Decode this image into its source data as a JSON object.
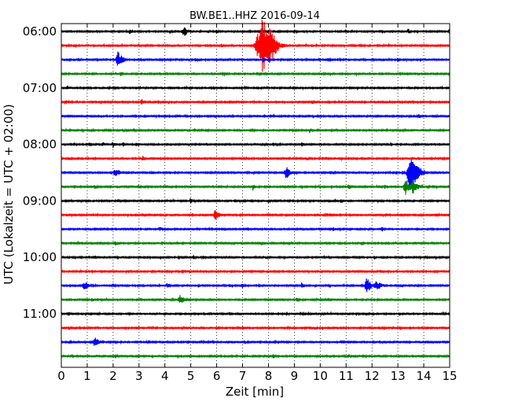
{
  "chart_data": {
    "type": "line",
    "title": "BW.BE1..HHZ 2016-09-14",
    "xlabel": "Zeit  [min]",
    "ylabel": "UTC (Lokalzeit = UTC + 02:00)",
    "xlim": [
      0,
      15
    ],
    "x_ticks": [
      "0",
      "1",
      "2",
      "3",
      "4",
      "5",
      "6",
      "7",
      "8",
      "9",
      "10",
      "11",
      "12",
      "13",
      "14",
      "15"
    ],
    "y_ticks": [
      "06:00",
      "07:00",
      "08:00",
      "09:00",
      "10:00",
      "11:00"
    ],
    "grid": {
      "vertical": "dotted",
      "horizontal": false
    },
    "trace_colors": [
      "#000000",
      "#ff0000",
      "#0000ff",
      "#008000"
    ],
    "traces": [
      {
        "start": "06:00",
        "events": [
          [
            2.65,
            1.0
          ],
          [
            4.75,
            1.4
          ],
          [
            4.2,
            0.5
          ],
          [
            6.0,
            0.4
          ],
          [
            9.0,
            0.5
          ],
          [
            12.4,
            0.4
          ],
          [
            13.4,
            0.8
          ],
          [
            15.0,
            0.8
          ]
        ]
      },
      {
        "start": "06:15",
        "events": [
          [
            3.0,
            0.5
          ],
          [
            6.2,
            0.6
          ],
          [
            7.6,
            3.5
          ],
          [
            7.8,
            7.0
          ],
          [
            8.1,
            3.0
          ],
          [
            11.5,
            0.4
          ]
        ]
      },
      {
        "start": "06:30",
        "events": [
          [
            0.7,
            0.4
          ],
          [
            2.2,
            2.5
          ],
          [
            3.0,
            0.5
          ],
          [
            5.2,
            0.4
          ],
          [
            7.8,
            0.6
          ],
          [
            10.3,
            0.4
          ],
          [
            13.0,
            0.5
          ]
        ]
      },
      {
        "start": "06:45",
        "events": [
          [
            1.2,
            0.5
          ],
          [
            2.3,
            0.4
          ],
          [
            6.3,
            0.5
          ],
          [
            11.0,
            0.4
          ]
        ]
      },
      {
        "start": "07:00",
        "events": [
          [
            0.25,
            0.7
          ],
          [
            2.0,
            0.4
          ],
          [
            5.8,
            0.4
          ],
          [
            9.0,
            0.4
          ]
        ]
      },
      {
        "start": "07:15",
        "events": [
          [
            0.2,
            0.4
          ],
          [
            1.5,
            0.4
          ],
          [
            3.1,
            1.0
          ],
          [
            9.7,
            0.5
          ],
          [
            13.4,
            0.4
          ]
        ]
      },
      {
        "start": "07:30",
        "events": [
          [
            4.5,
            0.4
          ],
          [
            8.1,
            0.4
          ],
          [
            13.8,
            0.8
          ]
        ]
      },
      {
        "start": "07:45",
        "events": [
          [
            2.8,
            0.4
          ],
          [
            5.6,
            0.5
          ],
          [
            9.6,
            0.4
          ]
        ]
      },
      {
        "start": "08:00",
        "events": [
          [
            0.5,
            0.5
          ],
          [
            1.1,
            0.6
          ],
          [
            1.6,
            0.7
          ],
          [
            2.0,
            0.9
          ],
          [
            2.4,
            0.7
          ],
          [
            2.9,
            0.5
          ],
          [
            7.8,
            0.4
          ],
          [
            8.2,
            0.4
          ],
          [
            9.3,
            0.5
          ]
        ]
      },
      {
        "start": "08:15",
        "events": [
          [
            0.3,
            0.4
          ],
          [
            3.15,
            0.9
          ],
          [
            9.5,
            0.4
          ]
        ]
      },
      {
        "start": "08:30",
        "events": [
          [
            2.1,
            1.3
          ],
          [
            3.5,
            0.5
          ],
          [
            8.7,
            1.8
          ],
          [
            10.5,
            0.4
          ],
          [
            13.2,
            0.5
          ],
          [
            13.5,
            6.0
          ]
        ]
      },
      {
        "start": "08:45",
        "events": [
          [
            1.3,
            0.5
          ],
          [
            3.0,
            0.5
          ],
          [
            4.0,
            0.4
          ],
          [
            7.4,
            1.0
          ],
          [
            11.1,
            1.2
          ],
          [
            12.5,
            0.5
          ],
          [
            13.3,
            2.5
          ],
          [
            13.6,
            2.0
          ]
        ]
      },
      {
        "start": "09:00",
        "events": [
          [
            2.2,
            0.4
          ],
          [
            5.0,
            1.0
          ],
          [
            8.0,
            0.4
          ],
          [
            10.8,
            0.4
          ]
        ]
      },
      {
        "start": "09:15",
        "events": [
          [
            5.95,
            1.4
          ],
          [
            10.2,
            0.4
          ]
        ]
      },
      {
        "start": "09:30",
        "events": [
          [
            1.3,
            0.5
          ],
          [
            3.8,
            1.0
          ],
          [
            10.5,
            0.6
          ],
          [
            12.4,
            0.6
          ]
        ]
      },
      {
        "start": "09:45",
        "events": [
          [
            2.1,
            0.5
          ],
          [
            3.9,
            0.5
          ],
          [
            7.7,
            0.4
          ],
          [
            8.8,
            0.4
          ],
          [
            11.6,
            0.4
          ]
        ]
      },
      {
        "start": "10:00",
        "events": [
          [
            1.3,
            0.4
          ],
          [
            2.1,
            0.4
          ],
          [
            5.1,
            0.6
          ],
          [
            5.5,
            0.4
          ],
          [
            7.9,
            0.4
          ],
          [
            12.1,
            0.4
          ]
        ]
      },
      {
        "start": "10:15",
        "events": [
          [
            3.5,
            0.5
          ],
          [
            4.7,
            0.4
          ]
        ]
      },
      {
        "start": "10:30",
        "events": [
          [
            0.9,
            1.3
          ],
          [
            2.0,
            0.5
          ],
          [
            4.1,
            0.9
          ],
          [
            7.0,
            0.6
          ],
          [
            9.3,
            1.0
          ],
          [
            11.8,
            2.5
          ],
          [
            12.2,
            1.5
          ]
        ]
      },
      {
        "start": "10:45",
        "events": [
          [
            1.2,
            0.4
          ],
          [
            4.6,
            1.4
          ],
          [
            9.1,
            0.5
          ]
        ]
      },
      {
        "start": "11:00",
        "events": [
          [
            0.3,
            0.4
          ],
          [
            6.5,
            0.4
          ],
          [
            8.7,
            0.6
          ],
          [
            11.4,
            0.4
          ]
        ]
      },
      {
        "start": "11:15",
        "events": [
          [
            0.3,
            0.4
          ],
          [
            3.4,
            0.4
          ],
          [
            7.0,
            0.7
          ],
          [
            9.8,
            0.4
          ],
          [
            12.4,
            0.4
          ]
        ]
      },
      {
        "start": "11:30",
        "events": [
          [
            0.3,
            0.4
          ],
          [
            1.3,
            1.3
          ],
          [
            3.3,
            0.4
          ],
          [
            7.1,
            0.4
          ],
          [
            10.8,
            0.4
          ]
        ]
      },
      {
        "start": "11:45",
        "events": [
          [
            2.1,
            0.4
          ],
          [
            8.2,
            0.6
          ],
          [
            11.1,
            0.5
          ]
        ]
      }
    ]
  }
}
